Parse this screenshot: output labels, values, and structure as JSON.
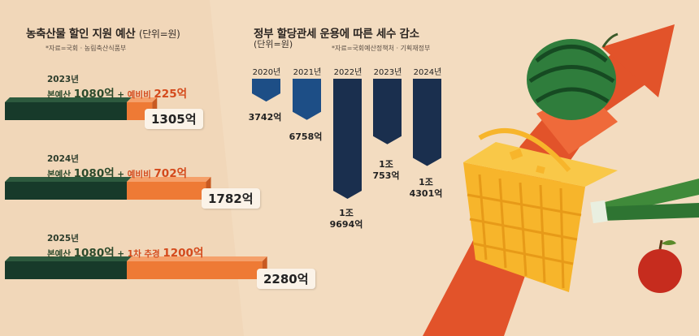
{
  "left": {
    "title": "농축산물 할인 지원 예산",
    "unit": "(단위=원)",
    "source": "*자료=국회 · 농림축산식품부",
    "rows": [
      {
        "year": "2023년",
        "base_label": "본예산",
        "base_value": "1080억",
        "plus": "+",
        "extra_label": "예비비",
        "extra_value": "225억",
        "total": "1305억",
        "base_num": 1080,
        "extra_num": 225
      },
      {
        "year": "2024년",
        "base_label": "본예산",
        "base_value": "1080억",
        "plus": "+",
        "extra_label": "예비비",
        "extra_value": "702억",
        "total": "1782억",
        "base_num": 1080,
        "extra_num": 702
      },
      {
        "year": "2025년",
        "base_label": "본예산",
        "base_value": "1080억",
        "plus": "+",
        "extra_label": "1차 추경",
        "extra_value": "1200억",
        "total": "2280억",
        "base_num": 1080,
        "extra_num": 1200
      }
    ]
  },
  "right": {
    "title": "정부 할당관세 운용에 따른 세수 감소",
    "unit": "(단위=원)",
    "source": "*자료=국회예산정책처 · 기획재정부",
    "years": [
      "2020년",
      "2021년",
      "2022년",
      "2023년",
      "2024년"
    ],
    "labels": [
      [
        "3742억"
      ],
      [
        "6758억"
      ],
      [
        "1조",
        "9694억"
      ],
      [
        "1조",
        "753억"
      ],
      [
        "1조",
        "4301억"
      ]
    ]
  },
  "chart_data": [
    {
      "type": "bar",
      "title": "농축산물 할인 지원 예산",
      "unit": "원",
      "categories": [
        "2023년",
        "2024년",
        "2025년"
      ],
      "series": [
        {
          "name": "본예산",
          "values": [
            1080,
            1080,
            1080
          ]
        },
        {
          "name": "예비비 / 1차 추경",
          "values": [
            225,
            702,
            1200
          ]
        }
      ],
      "totals": [
        1305,
        1782,
        2280
      ]
    },
    {
      "type": "bar",
      "title": "정부 할당관세 운용에 따른 세수 감소",
      "unit": "원",
      "categories": [
        "2020년",
        "2021년",
        "2022년",
        "2023년",
        "2024년"
      ],
      "values": [
        3742,
        6758,
        19694,
        10753,
        14301
      ]
    }
  ],
  "colors": {
    "background": "#f3dcc0",
    "green": "#173a2a",
    "orange": "#ee7a35",
    "blue": "#1d4e86",
    "navy": "#1a2f4e",
    "accent_red": "#d44a1c"
  }
}
